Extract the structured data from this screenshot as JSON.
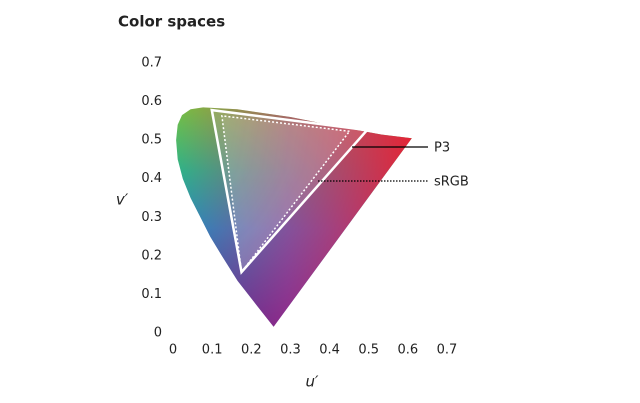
{
  "chart_data": {
    "type": "chromaticity",
    "title": "Color spaces",
    "x_label": "u′",
    "y_label": "v′",
    "xlim": [
      0,
      0.7
    ],
    "ylim": [
      0,
      0.7
    ],
    "xticks": [
      0,
      0.1,
      0.2,
      0.3,
      0.4,
      0.5,
      0.6,
      0.7
    ],
    "yticks": [
      0,
      0.1,
      0.2,
      0.3,
      0.4,
      0.5,
      0.6,
      0.7
    ],
    "locus": {
      "u": [
        0.257,
        0.215,
        0.165,
        0.125,
        0.095,
        0.07,
        0.045,
        0.025,
        0.012,
        0.008,
        0.012,
        0.023,
        0.045,
        0.077,
        0.164,
        0.3,
        0.422,
        0.53,
        0.61
      ],
      "v": [
        0.016,
        0.07,
        0.135,
        0.2,
        0.25,
        0.3,
        0.35,
        0.4,
        0.45,
        0.5,
        0.54,
        0.565,
        0.58,
        0.585,
        0.58,
        0.56,
        0.535,
        0.515,
        0.505
      ]
    },
    "series": [
      {
        "name": "P3",
        "color": "#ffffff",
        "line_style": "solid",
        "u": [
          0.496,
          0.099,
          0.175
        ],
        "v": [
          0.526,
          0.578,
          0.158
        ]
      },
      {
        "name": "sRGB",
        "color": "#ffffff",
        "line_style": "dotted",
        "u": [
          0.451,
          0.125,
          0.175
        ],
        "v": [
          0.523,
          0.563,
          0.158
        ]
      }
    ]
  }
}
